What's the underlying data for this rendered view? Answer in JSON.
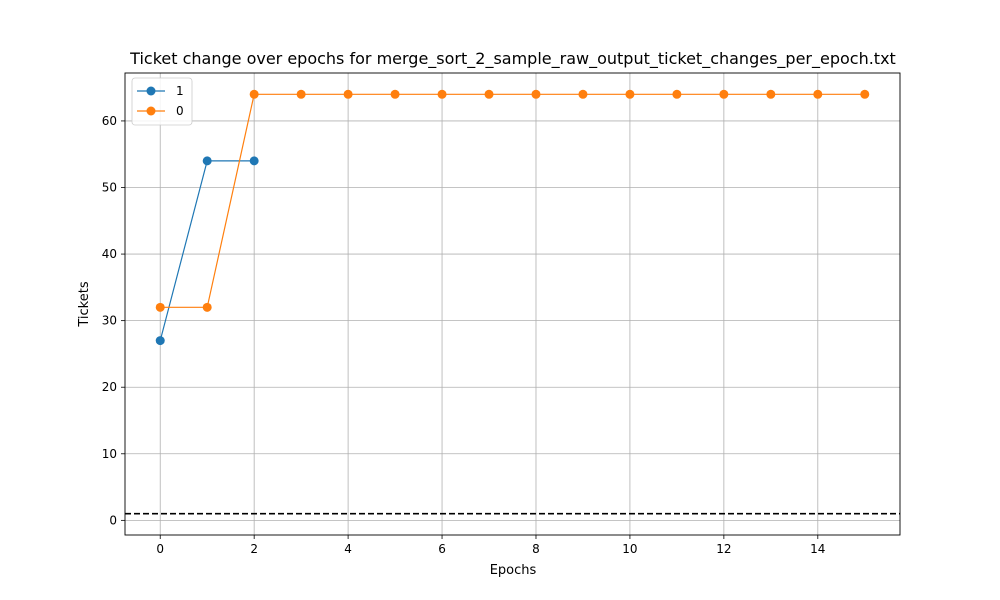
{
  "chart_data": {
    "type": "line",
    "title": "Ticket change over epochs for merge_sort_2_sample_raw_output_ticket_changes_per_epoch.txt",
    "xlabel": "Epochs",
    "ylabel": "Tickets",
    "xlim": [
      -0.75,
      15.75
    ],
    "ylim": [
      -2.2,
      67.2
    ],
    "xticks": [
      0,
      2,
      4,
      6,
      8,
      10,
      12,
      14
    ],
    "yticks": [
      0,
      10,
      20,
      30,
      40,
      50,
      60
    ],
    "grid": true,
    "legend_position": "top-left",
    "series": [
      {
        "name": "1",
        "color": "#1f77b4",
        "x": [
          0,
          1,
          2
        ],
        "y": [
          27,
          54,
          54
        ]
      },
      {
        "name": "0",
        "color": "#ff7f0e",
        "x": [
          0,
          1,
          2,
          3,
          4,
          5,
          6,
          7,
          8,
          9,
          10,
          11,
          12,
          13,
          14,
          15
        ],
        "y": [
          32,
          32,
          64,
          64,
          64,
          64,
          64,
          64,
          64,
          64,
          64,
          64,
          64,
          64,
          64,
          64
        ]
      }
    ],
    "reference_line": {
      "y": 1,
      "style": "dashed",
      "color": "#000000"
    }
  }
}
